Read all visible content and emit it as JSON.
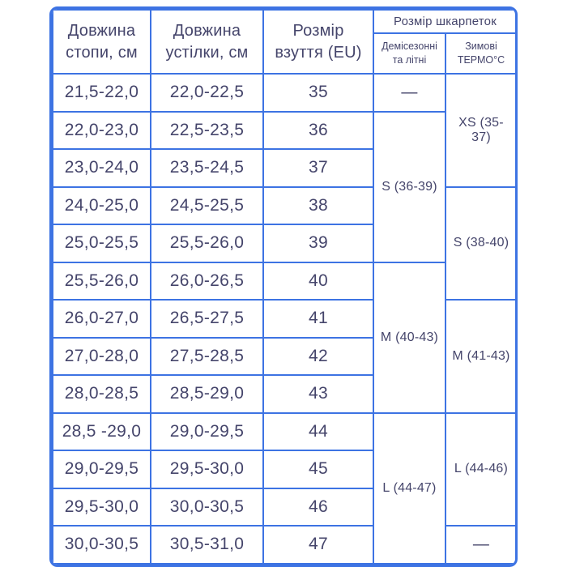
{
  "colors": {
    "border": "#3d73e3",
    "text": "#45456b",
    "background": "#ffffff"
  },
  "table": {
    "headers": {
      "foot": "Довжина стопи, см",
      "insole": "Довжина устілки, см",
      "eu": "Розмір взуття (EU)",
      "socks_group": "Розмір шкарпеток",
      "demi": "Демісезонні та літні",
      "thermo": "Зимові ТЕРМО°С"
    },
    "rows": [
      {
        "foot": "21,5-22,0",
        "insole": "22,0-22,5",
        "eu": "35"
      },
      {
        "foot": "22,0-23,0",
        "insole": "22,5-23,5",
        "eu": "36"
      },
      {
        "foot": "23,0-24,0",
        "insole": "23,5-24,5",
        "eu": "37"
      },
      {
        "foot": "24,0-25,0",
        "insole": "24,5-25,5",
        "eu": "38"
      },
      {
        "foot": "25,0-25,5",
        "insole": "25,5-26,0",
        "eu": "39"
      },
      {
        "foot": "25,5-26,0",
        "insole": "26,0-26,5",
        "eu": "40"
      },
      {
        "foot": "26,0-27,0",
        "insole": "26,5-27,5",
        "eu": "41"
      },
      {
        "foot": "27,0-28,0",
        "insole": "27,5-28,5",
        "eu": "42"
      },
      {
        "foot": "28,0-28,5",
        "insole": "28,5-29,0",
        "eu": "43"
      },
      {
        "foot": "28,5 -29,0",
        "insole": "29,0-29,5",
        "eu": "44"
      },
      {
        "foot": "29,0-29,5",
        "insole": "29,5-30,0",
        "eu": "45"
      },
      {
        "foot": "29,5-30,0",
        "insole": "30,0-30,5",
        "eu": "46"
      },
      {
        "foot": "30,0-30,5",
        "insole": "30,5-31,0",
        "eu": "47"
      }
    ],
    "demi_groups": [
      {
        "label": "—",
        "rowspan": 1
      },
      {
        "label": "S (36-39)",
        "rowspan": 4
      },
      {
        "label": "M (40-43)",
        "rowspan": 4
      },
      {
        "label": "L (44-47)",
        "rowspan": 4
      }
    ],
    "thermo_groups": [
      {
        "label": "XS (35-37)",
        "rowspan": 3
      },
      {
        "label": "S (38-40)",
        "rowspan": 3
      },
      {
        "label": "M (41-43)",
        "rowspan": 3
      },
      {
        "label": "L (44-46)",
        "rowspan": 3
      },
      {
        "label": "—",
        "rowspan": 1
      }
    ]
  }
}
